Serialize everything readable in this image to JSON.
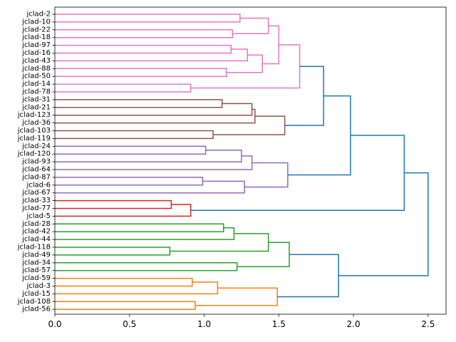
{
  "chart_data": {
    "type": "dendrogram",
    "orientation": "left",
    "xlabel": "",
    "ylabel": "",
    "xlim": [
      0,
      2.62
    ],
    "x_ticks": [
      0.0,
      0.5,
      1.0,
      1.5,
      2.0,
      2.5
    ],
    "x_tick_labels": [
      "0.0",
      "0.5",
      "1.0",
      "1.5",
      "2.0",
      "2.5"
    ],
    "leaves": [
      "jclad-2",
      "jclad-10",
      "jclad-22",
      "jclad-18",
      "jclad-97",
      "jclad-16",
      "jclad-43",
      "jclad-88",
      "jclad-50",
      "jclad-14",
      "jclad-78",
      "jclad-31",
      "jclad-21",
      "jclad-123",
      "jclad-36",
      "jclad-103",
      "jclad-119",
      "jclad-24",
      "jclad-120",
      "jclad-93",
      "jclad-64",
      "jclad-87",
      "jclad-6",
      "jclad-67",
      "jclad-33",
      "jclad-77",
      "jclad-5",
      "jclad-28",
      "jclad-42",
      "jclad-44",
      "jclad-118",
      "jclad-49",
      "jclad-34",
      "jclad-57",
      "jclad-59",
      "jclad-3",
      "jclad-15",
      "jclad-108",
      "jclad-56"
    ],
    "colors": {
      "pink": "#e377c2",
      "brown": "#8c564b",
      "purple": "#9467bd",
      "red": "#d62728",
      "green": "#2ca02c",
      "orange": "#ff7f0e",
      "blue": "#1f77b4"
    },
    "merges": [
      {
        "id": "P1",
        "a": 0,
        "b": 1,
        "h": 1.24,
        "color": "pink"
      },
      {
        "id": "P2",
        "a": 2,
        "b": 3,
        "h": 1.19,
        "color": "pink"
      },
      {
        "id": "P3",
        "a": "P1",
        "b": "P2",
        "h": 1.43,
        "color": "pink"
      },
      {
        "id": "P4",
        "a": 4,
        "b": 5,
        "h": 1.18,
        "color": "pink"
      },
      {
        "id": "P5",
        "a": "P4",
        "b": 6,
        "h": 1.29,
        "color": "pink"
      },
      {
        "id": "P6",
        "a": 7,
        "b": 8,
        "h": 1.15,
        "color": "pink"
      },
      {
        "id": "P7",
        "a": "P5",
        "b": "P6",
        "h": 1.39,
        "color": "pink"
      },
      {
        "id": "P8",
        "a": "P3",
        "b": "P7",
        "h": 1.5,
        "color": "pink"
      },
      {
        "id": "P9",
        "a": 9,
        "b": 10,
        "h": 0.91,
        "color": "pink"
      },
      {
        "id": "P10",
        "a": "P8",
        "b": "P9",
        "h": 1.64,
        "color": "pink"
      },
      {
        "id": "B1",
        "a": 11,
        "b": 12,
        "h": 1.12,
        "color": "brown"
      },
      {
        "id": "B2",
        "a": "B1",
        "b": 13,
        "h": 1.32,
        "color": "brown"
      },
      {
        "id": "B3",
        "a": "B2",
        "b": 14,
        "h": 1.34,
        "color": "brown"
      },
      {
        "id": "B4",
        "a": 15,
        "b": 16,
        "h": 1.06,
        "color": "brown"
      },
      {
        "id": "B5",
        "a": "B3",
        "b": "B4",
        "h": 1.54,
        "color": "brown"
      },
      {
        "id": "Q1",
        "a": 17,
        "b": 18,
        "h": 1.01,
        "color": "purple"
      },
      {
        "id": "Q2",
        "a": "Q1",
        "b": 19,
        "h": 1.25,
        "color": "purple"
      },
      {
        "id": "Q3",
        "a": "Q2",
        "b": 20,
        "h": 1.32,
        "color": "purple"
      },
      {
        "id": "Q4",
        "a": 21,
        "b": 22,
        "h": 0.99,
        "color": "purple"
      },
      {
        "id": "Q5",
        "a": "Q4",
        "b": 23,
        "h": 1.27,
        "color": "purple"
      },
      {
        "id": "Q6",
        "a": "Q3",
        "b": "Q5",
        "h": 1.56,
        "color": "purple"
      },
      {
        "id": "R1",
        "a": 24,
        "b": 25,
        "h": 0.78,
        "color": "red"
      },
      {
        "id": "R2",
        "a": "R1",
        "b": 26,
        "h": 0.91,
        "color": "red"
      },
      {
        "id": "G1",
        "a": 27,
        "b": 28,
        "h": 1.13,
        "color": "green"
      },
      {
        "id": "G2",
        "a": "G1",
        "b": 29,
        "h": 1.2,
        "color": "green"
      },
      {
        "id": "G3",
        "a": 30,
        "b": 31,
        "h": 0.77,
        "color": "green"
      },
      {
        "id": "G4",
        "a": "G2",
        "b": "G3",
        "h": 1.43,
        "color": "green"
      },
      {
        "id": "G5",
        "a": 32,
        "b": 33,
        "h": 1.22,
        "color": "green"
      },
      {
        "id": "G6",
        "a": "G4",
        "b": "G5",
        "h": 1.57,
        "color": "green"
      },
      {
        "id": "O1",
        "a": 34,
        "b": 35,
        "h": 0.92,
        "color": "orange"
      },
      {
        "id": "O2",
        "a": "O1",
        "b": 36,
        "h": 1.09,
        "color": "orange"
      },
      {
        "id": "O3",
        "a": 37,
        "b": 38,
        "h": 0.94,
        "color": "orange"
      },
      {
        "id": "O4",
        "a": "O2",
        "b": "O3",
        "h": 1.49,
        "color": "orange"
      },
      {
        "id": "T1",
        "a": "P10",
        "b": "B5",
        "h": 1.8,
        "color": "blue"
      },
      {
        "id": "T2",
        "a": "T1",
        "b": "Q6",
        "h": 1.98,
        "color": "blue"
      },
      {
        "id": "T3",
        "a": "T2",
        "b": "R2",
        "h": 2.34,
        "color": "blue"
      },
      {
        "id": "T4",
        "a": "G6",
        "b": "O4",
        "h": 1.9,
        "color": "blue"
      },
      {
        "id": "T5",
        "a": "T3",
        "b": "T4",
        "h": 2.5,
        "color": "blue"
      }
    ]
  }
}
